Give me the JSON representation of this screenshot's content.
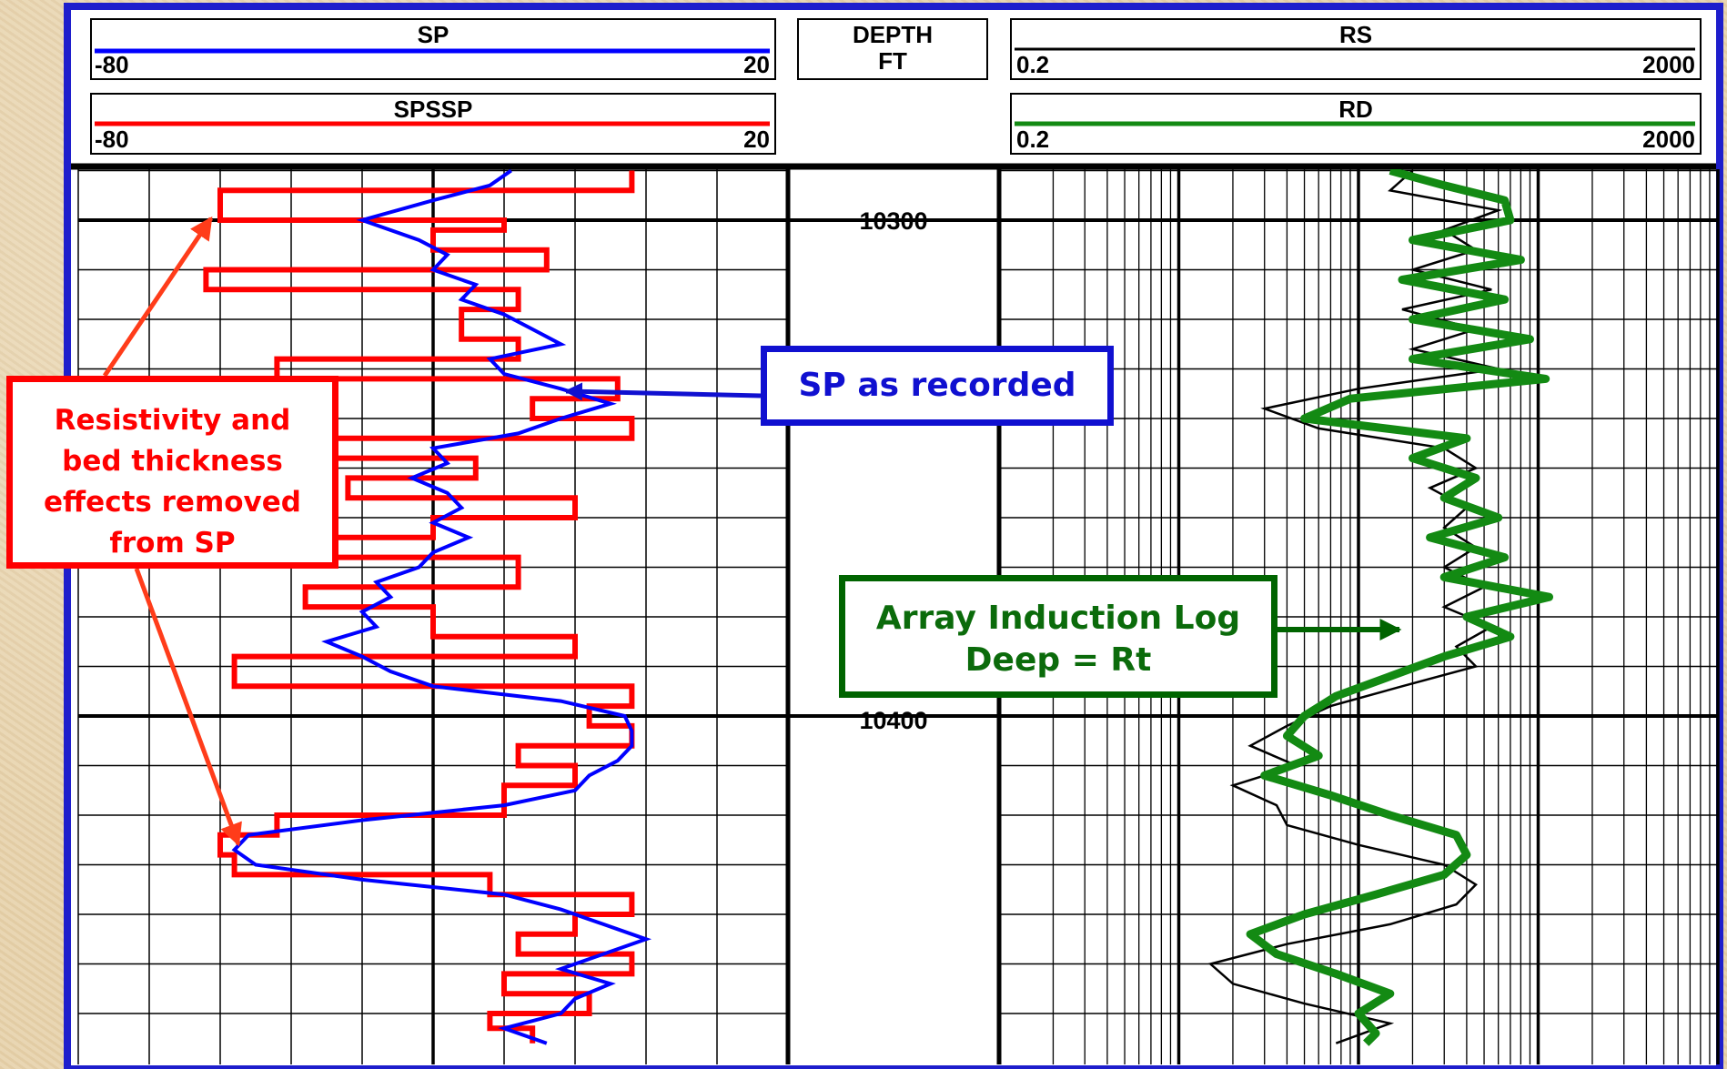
{
  "chart_data": {
    "type": "line",
    "title": "",
    "header": {
      "sp": {
        "label": "SP",
        "min": "-80",
        "max": "20",
        "color": "#0000ff"
      },
      "spssp": {
        "label": "SPSSP",
        "min": "-80",
        "max": "20",
        "color": "#ff0000"
      },
      "depth": {
        "label": "DEPTH",
        "unit": "FT"
      },
      "rs": {
        "label": "RS",
        "min": "0.2",
        "max": "2000",
        "color": "#000000"
      },
      "rd": {
        "label": "RD",
        "min": "0.2",
        "max": "2000",
        "color": "#138a13"
      }
    },
    "depth_labels": [
      "10300",
      "10400"
    ],
    "depth_range": [
      10290,
      10466
    ],
    "sp_scale": [
      -80,
      20
    ],
    "res_scale": [
      0.2,
      2000
    ],
    "res_scale_type": "log",
    "series": [
      {
        "name": "SP",
        "track": "left",
        "color": "#0000ff",
        "depth": [
          10290,
          10293,
          10296,
          10300,
          10304,
          10307,
          10310,
          10313,
          10316,
          10319,
          10322,
          10325,
          10328,
          10331,
          10334,
          10337,
          10340,
          10343,
          10346,
          10349,
          10352,
          10355,
          10358,
          10361,
          10364,
          10367,
          10370,
          10373,
          10376,
          10379,
          10382,
          10385,
          10388,
          10391,
          10394,
          10397,
          10400,
          10403,
          10406,
          10409,
          10412,
          10415,
          10418,
          10421,
          10424,
          10427,
          10430,
          10433,
          10436,
          10439,
          10442,
          10445,
          10448,
          10451,
          10454,
          10457,
          10460,
          10463,
          10466
        ],
        "values": [
          -19,
          -22,
          -30,
          -40,
          -32,
          -28,
          -30,
          -24,
          -26,
          -20,
          -16,
          -12,
          -22,
          -20,
          -12,
          -5,
          -12,
          -18,
          -30,
          -28,
          -33,
          -28,
          -26,
          -30,
          -25,
          -30,
          -32,
          -38,
          -36,
          -40,
          -38,
          -45,
          -40,
          -36,
          -30,
          -12,
          -3,
          -2,
          -2,
          -4,
          -8,
          -10,
          -20,
          -40,
          -56,
          -58,
          -55,
          -40,
          -20,
          -12,
          -6,
          0,
          -6,
          -12,
          -5,
          -10,
          -12,
          -20,
          -14
        ]
      },
      {
        "name": "SPSSP",
        "track": "left",
        "color": "#ff0000",
        "depth": [
          10290,
          10294,
          10294,
          10300,
          10300,
          10302,
          10302,
          10306,
          10306,
          10310,
          10310,
          10314,
          10314,
          10318,
          10318,
          10324,
          10324,
          10328,
          10328,
          10332,
          10332,
          10336,
          10336,
          10340,
          10340,
          10344,
          10344,
          10348,
          10348,
          10352,
          10352,
          10356,
          10356,
          10360,
          10360,
          10364,
          10364,
          10368,
          10368,
          10374,
          10374,
          10378,
          10378,
          10384,
          10384,
          10388,
          10388,
          10394,
          10394,
          10398,
          10398,
          10402,
          10402,
          10406,
          10406,
          10410,
          10410,
          10414,
          10414,
          10420,
          10420,
          10424,
          10424,
          10428,
          10428,
          10432,
          10432,
          10436,
          10436,
          10440,
          10440,
          10444,
          10444,
          10448,
          10448,
          10452,
          10452,
          10456,
          10456,
          10460,
          10460,
          10463,
          10463,
          10466
        ],
        "values": [
          -2,
          -2,
          -60,
          -60,
          -20,
          -20,
          -30,
          -30,
          -14,
          -14,
          -62,
          -62,
          -18,
          -18,
          -26,
          -26,
          -18,
          -18,
          -52,
          -52,
          -4,
          -4,
          -16,
          -16,
          -2,
          -2,
          -56,
          -56,
          -24,
          -24,
          -42,
          -42,
          -10,
          -10,
          -30,
          -30,
          -44,
          -44,
          -18,
          -18,
          -48,
          -48,
          -30,
          -30,
          -10,
          -10,
          -58,
          -58,
          -2,
          -2,
          -8,
          -8,
          -2,
          -2,
          -18,
          -18,
          -10,
          -10,
          -20,
          -20,
          -52,
          -52,
          -60,
          -60,
          -58,
          -58,
          -22,
          -22,
          -2,
          -2,
          -10,
          -10,
          -18,
          -18,
          -2,
          -2,
          -20,
          -20,
          -8,
          -8,
          -22,
          -22,
          -16,
          -16
        ]
      },
      {
        "name": "RS",
        "track": "right",
        "color": "#000000",
        "depth": [
          10290,
          10294,
          10298,
          10302,
          10306,
          10310,
          10314,
          10318,
          10322,
          10326,
          10330,
          10334,
          10338,
          10342,
          10346,
          10350,
          10354,
          10358,
          10362,
          10366,
          10370,
          10374,
          10378,
          10382,
          10386,
          10390,
          10394,
          10398,
          10402,
          10406,
          10410,
          10414,
          10418,
          10422,
          10426,
          10430,
          10434,
          10438,
          10442,
          10446,
          10450,
          10454,
          10458,
          10462,
          10466
        ],
        "values": [
          40,
          30,
          120,
          60,
          90,
          40,
          110,
          35,
          90,
          40,
          120,
          20,
          6,
          12,
          60,
          90,
          50,
          80,
          60,
          90,
          60,
          100,
          60,
          110,
          70,
          90,
          35,
          14,
          8,
          5,
          9,
          4,
          7,
          8,
          20,
          60,
          90,
          70,
          30,
          8,
          3,
          4,
          10,
          30,
          15
        ]
      },
      {
        "name": "RD",
        "track": "right",
        "color": "#138a13",
        "depth": [
          10290,
          10293,
          10296,
          10300,
          10304,
          10308,
          10312,
          10316,
          10320,
          10324,
          10328,
          10332,
          10336,
          10340,
          10344,
          10348,
          10352,
          10356,
          10360,
          10364,
          10368,
          10372,
          10376,
          10380,
          10384,
          10388,
          10392,
          10396,
          10400,
          10404,
          10408,
          10412,
          10416,
          10420,
          10424,
          10428,
          10432,
          10436,
          10440,
          10444,
          10448,
          10452,
          10456,
          10460,
          10464,
          10466
        ],
        "values": [
          30,
          60,
          130,
          140,
          40,
          160,
          35,
          130,
          40,
          180,
          40,
          220,
          18,
          10,
          80,
          40,
          90,
          60,
          120,
          50,
          130,
          60,
          230,
          80,
          140,
          60,
          30,
          15,
          10,
          8,
          12,
          6,
          14,
          30,
          70,
          80,
          60,
          25,
          10,
          5,
          7,
          15,
          30,
          20,
          25,
          22
        ]
      }
    ]
  },
  "annotations": {
    "red_lines": [
      "Resistivity and",
      "bed thickness",
      "effects removed",
      "from SP"
    ],
    "blue_text": "SP as recorded",
    "green_lines": [
      "Array Induction Log",
      "Deep = Rt"
    ],
    "red_color": "#ff0000",
    "blue_color": "#1010d0",
    "green_color": "#006400",
    "arrow_red": "#ff3c1a"
  }
}
